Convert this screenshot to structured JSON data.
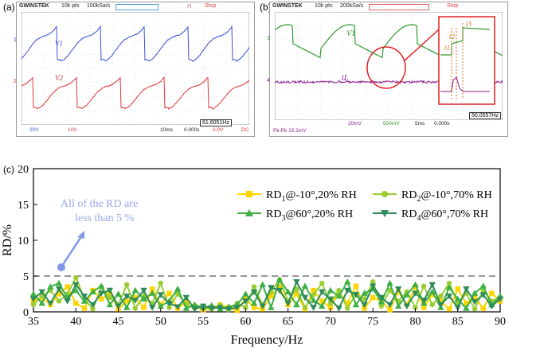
{
  "panel_a": {
    "label": "(a)",
    "brand": "GWINSTEK",
    "points": "10k pts",
    "sample_rate": "100kSa/s",
    "status": "Stop",
    "trace1_name": "V1",
    "trace2_name": "V2",
    "ch1_marker": "1",
    "ch2_marker": "2",
    "footer_ch1": "20V",
    "footer_ch2": "10V",
    "footer_time": "10ms",
    "footer_offset": "0.000s",
    "footer_trig": "0.0V",
    "footer_dc": "DC",
    "footer_freq": "61.6051Hz",
    "colors": {
      "trace1": "#3b4fd8",
      "trace2": "#e03535"
    }
  },
  "panel_b": {
    "label": "(b)",
    "brand": "GWINSTEK",
    "points": "10k pts",
    "sample_rate": "200kSa/s",
    "status": "Stop",
    "trace1_name": "V1",
    "trace2_name": "iL",
    "inset_t1": "t1",
    "inset_t2": "t2",
    "inset_t3": "t3",
    "ch3_marker": "3",
    "ch4_marker": "4",
    "footer_ch3": "20mV",
    "footer_ch4": "500mV",
    "footer_time": "5ms",
    "footer_offset": "0.000s",
    "footer_freq": "50.0557Hz",
    "footer_math": "Pk-Pk 15.2mV",
    "colors": {
      "trace1": "#2e9a2e",
      "trace2": "#8a1a8a",
      "highlight": "#e02020"
    }
  },
  "panel_c": {
    "label": "(c)",
    "annotation_line1": "All of the RD are",
    "annotation_line2": "less than 5 %",
    "threshold": 5
  },
  "chart_data": {
    "type": "line",
    "xlabel": "Frequency/Hz",
    "ylabel": "RD/%",
    "xlim": [
      35,
      90
    ],
    "ylim": [
      0,
      20
    ],
    "x_ticks": [
      "35",
      "40",
      "45",
      "50",
      "55",
      "60",
      "65",
      "70",
      "75",
      "80",
      "85",
      "90"
    ],
    "y_ticks": [
      "0",
      "5",
      "10",
      "15",
      "20"
    ],
    "legend_position": "top-right",
    "x": [
      35,
      36,
      37,
      38,
      39,
      40,
      41,
      42,
      43,
      44,
      45,
      46,
      47,
      48,
      49,
      50,
      51,
      52,
      53,
      54,
      55,
      56,
      57,
      58,
      59,
      60,
      61,
      62,
      63,
      64,
      65,
      66,
      67,
      68,
      69,
      70,
      71,
      72,
      73,
      74,
      75,
      76,
      77,
      78,
      79,
      80,
      81,
      82,
      83,
      84,
      85,
      86,
      87,
      88,
      89,
      90
    ],
    "series": [
      {
        "name": "RD1@-10°,20% RH",
        "color": "#ffd400",
        "marker": "square",
        "values": [
          1.5,
          2.0,
          1.0,
          2.5,
          3.5,
          1.2,
          0.5,
          3.0,
          1.8,
          2.5,
          0.4,
          1.5,
          2.0,
          0.6,
          3.2,
          1.0,
          2.6,
          0.5,
          1.4,
          0.8,
          0.3,
          0.5,
          1.0,
          0.6,
          0.2,
          1.8,
          0.6,
          0.4,
          2.2,
          3.5,
          1.0,
          2.5,
          0.4,
          3.0,
          1.5,
          0.6,
          2.8,
          1.2,
          3.6,
          0.5,
          2.0,
          1.5,
          0.3,
          2.8,
          1.0,
          3.5,
          0.6,
          2.4,
          1.5,
          0.4,
          3.2,
          1.2,
          2.0,
          0.5,
          2.6,
          1.5
        ]
      },
      {
        "name": "RD2@-10°,70% RH",
        "color": "#9acd32",
        "marker": "circle",
        "values": [
          1.0,
          2.2,
          3.0,
          1.5,
          2.5,
          4.8,
          1.8,
          0.4,
          3.5,
          2.0,
          1.0,
          3.8,
          0.5,
          2.2,
          1.2,
          4.0,
          0.6,
          2.5,
          1.0,
          0.5,
          0.7,
          0.4,
          0.9,
          0.3,
          1.2,
          0.6,
          3.5,
          1.0,
          2.8,
          4.5,
          1.5,
          3.2,
          0.6,
          2.4,
          4.0,
          1.2,
          3.0,
          0.5,
          2.5,
          1.8,
          4.2,
          0.8,
          3.0,
          1.5,
          2.8,
          0.6,
          3.6,
          1.0,
          2.2,
          4.0,
          1.2,
          2.6,
          0.4,
          3.0,
          1.5,
          2.0
        ]
      },
      {
        "name": "RD3@60°,20% RH",
        "color": "#3cb043",
        "marker": "triangle-up",
        "values": [
          2.5,
          1.2,
          3.5,
          4.0,
          2.0,
          3.0,
          1.5,
          2.8,
          3.6,
          1.0,
          2.5,
          0.6,
          3.0,
          1.8,
          2.6,
          0.8,
          1.5,
          3.2,
          0.5,
          1.0,
          0.6,
          0.9,
          0.4,
          0.7,
          1.0,
          2.5,
          1.2,
          3.8,
          0.6,
          4.5,
          2.8,
          1.0,
          3.6,
          1.6,
          0.8,
          3.0,
          2.2,
          4.2,
          1.0,
          2.6,
          3.2,
          1.4,
          4.0,
          0.8,
          2.4,
          3.8,
          1.2,
          2.8,
          0.6,
          3.4,
          1.8,
          0.5,
          2.6,
          3.6,
          1.0,
          2.2
        ]
      },
      {
        "name": "RD4@60°,70% RH",
        "color": "#2e8b57",
        "marker": "triangle-down",
        "values": [
          1.8,
          2.8,
          1.2,
          3.2,
          1.5,
          3.8,
          2.2,
          1.0,
          2.6,
          3.0,
          0.8,
          2.2,
          1.6,
          3.0,
          0.6,
          2.4,
          1.2,
          0.7,
          2.0,
          0.4,
          0.8,
          0.5,
          0.6,
          0.4,
          0.6,
          1.5,
          2.8,
          0.8,
          3.4,
          3.0,
          1.2,
          4.2,
          2.0,
          0.6,
          2.8,
          1.8,
          0.5,
          3.0,
          2.4,
          1.0,
          3.6,
          2.0,
          1.0,
          3.2,
          0.8,
          2.6,
          1.6,
          3.8,
          1.0,
          2.2,
          0.6,
          3.2,
          1.4,
          2.4,
          0.8,
          1.8
        ]
      }
    ]
  }
}
